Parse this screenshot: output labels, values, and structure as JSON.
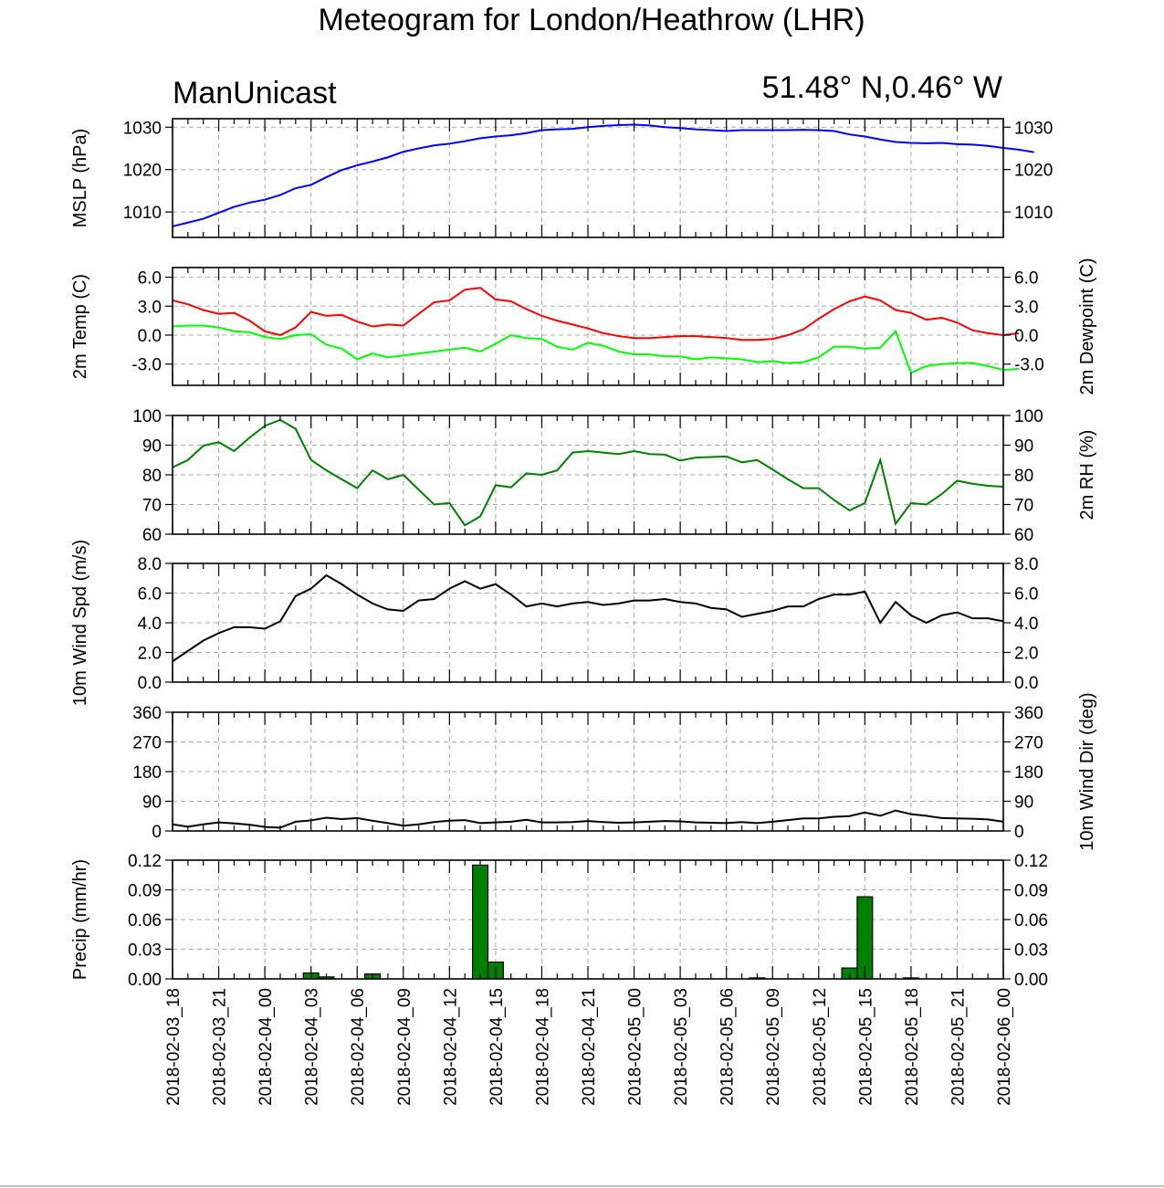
{
  "title": "Meteogram for London/Heathrow (LHR)",
  "model": "ManUnicast",
  "location": "51.48° N,0.46° W",
  "time_labels": [
    "2018-02-03_18",
    "2018-02-03_21",
    "2018-02-04_00",
    "2018-02-04_03",
    "2018-02-04_06",
    "2018-02-04_09",
    "2018-02-04_12",
    "2018-02-04_15",
    "2018-02-04_18",
    "2018-02-04_21",
    "2018-02-05_00",
    "2018-02-05_03",
    "2018-02-05_06",
    "2018-02-05_09",
    "2018-02-05_12",
    "2018-02-05_15",
    "2018-02-05_18",
    "2018-02-05_21",
    "2018-02-06_00"
  ],
  "chart_data": [
    {
      "type": "line",
      "ylabel": "MSLP (hPa)",
      "ylabel_right": "",
      "ylim": [
        1004,
        1032
      ],
      "yticks": [
        "1010",
        "1020",
        "1030"
      ],
      "ytick_values": [
        1010,
        1020,
        1030
      ],
      "grid": true,
      "x_unit": "hours since 2018-02-03 18:00",
      "series": [
        {
          "color": "#0000ff",
          "values": [
            1006.6,
            1007.5,
            1008.4,
            1009.8,
            1011.2,
            1012.2,
            1012.9,
            1014.0,
            1015.6,
            1016.4,
            1018.2,
            1019.9,
            1021.0,
            1021.9,
            1022.9,
            1024.2,
            1025.0,
            1025.7,
            1026.1,
            1026.7,
            1027.4,
            1027.8,
            1028.1,
            1028.6,
            1029.3,
            1029.5,
            1029.6,
            1030.0,
            1030.3,
            1030.5,
            1030.6,
            1030.4,
            1030.0,
            1029.8,
            1029.5,
            1029.3,
            1029.1,
            1029.3,
            1029.3,
            1029.3,
            1029.3,
            1029.4,
            1029.3,
            1029.1,
            1028.3,
            1027.8,
            1027.1,
            1026.5,
            1026.3,
            1026.2,
            1026.3,
            1026.0,
            1025.9,
            1025.6,
            1025.1,
            1024.7,
            1024.1
          ]
        }
      ]
    },
    {
      "type": "line",
      "ylabel": "2m Temp (C)",
      "ylabel_right": "2m Dewpoint (C)",
      "ylim": [
        -5.2,
        7.0
      ],
      "yticks": [
        "-3.0",
        "0.0",
        "3.0",
        "6.0"
      ],
      "ytick_values": [
        -3,
        0,
        3,
        6
      ],
      "grid": true,
      "x_unit": "hours since 2018-02-03 18:00",
      "series": [
        {
          "color": "#ff0000",
          "values": [
            3.6,
            3.2,
            2.6,
            2.2,
            2.3,
            1.5,
            0.4,
            0.0,
            0.8,
            2.4,
            2.0,
            2.1,
            1.4,
            0.9,
            1.1,
            1.0,
            2.2,
            3.4,
            3.6,
            4.7,
            4.9,
            3.7,
            3.5,
            2.7,
            2.0,
            1.5,
            1.1,
            0.7,
            0.2,
            -0.1,
            -0.3,
            -0.3,
            -0.2,
            -0.1,
            -0.1,
            -0.2,
            -0.3,
            -0.5,
            -0.5,
            -0.4,
            0.0,
            0.6,
            1.7,
            2.7,
            3.5,
            4.0,
            3.6,
            2.6,
            2.3,
            1.6,
            1.8,
            1.3,
            0.5,
            0.2,
            0.0,
            0.2
          ]
        },
        {
          "color": "#00ff00",
          "values": [
            0.9,
            1.0,
            1.0,
            0.8,
            0.4,
            0.3,
            -0.2,
            -0.4,
            0.0,
            0.1,
            -1.0,
            -1.4,
            -2.5,
            -1.9,
            -2.3,
            -2.1,
            -1.9,
            -1.7,
            -1.5,
            -1.3,
            -1.7,
            -0.9,
            0.0,
            -0.3,
            -0.4,
            -1.2,
            -1.5,
            -0.8,
            -1.1,
            -1.7,
            -2.0,
            -2.0,
            -2.2,
            -2.2,
            -2.5,
            -2.3,
            -2.4,
            -2.5,
            -2.8,
            -2.7,
            -2.9,
            -2.8,
            -2.3,
            -1.2,
            -1.2,
            -1.4,
            -1.3,
            0.4,
            -3.9,
            -3.2,
            -3.0,
            -2.9,
            -2.9,
            -3.2,
            -3.6,
            -3.5
          ]
        }
      ]
    },
    {
      "type": "line",
      "ylabel": "",
      "ylabel_right": "2m RH (%)",
      "ylim": [
        60,
        100
      ],
      "yticks": [
        "60",
        "70",
        "80",
        "90",
        "100"
      ],
      "ytick_values": [
        60,
        70,
        80,
        90,
        100
      ],
      "grid": true,
      "x_unit": "hours since 2018-02-03 18:00",
      "series": [
        {
          "color": "#008000",
          "values": [
            82.5,
            85.0,
            89.8,
            91.0,
            88.0,
            92.5,
            96.5,
            98.5,
            95.5,
            85.0,
            81.5,
            78.5,
            75.5,
            81.5,
            78.5,
            80.0,
            75.0,
            70.0,
            70.5,
            63.0,
            66.0,
            76.5,
            75.8,
            80.5,
            80.0,
            81.5,
            87.5,
            88.0,
            87.5,
            87.0,
            88.0,
            87.0,
            86.8,
            84.8,
            85.8,
            86.0,
            86.2,
            84.2,
            85.0,
            81.8,
            78.5,
            75.5,
            75.5,
            71.5,
            68.0,
            70.5,
            85.0,
            63.5,
            70.5,
            70.0,
            73.5,
            78.0,
            77.0,
            76.3,
            76.0
          ]
        }
      ]
    },
    {
      "type": "line",
      "ylabel": "10m Wind Spd (m/s)",
      "ylabel_right": "",
      "ylim": [
        0,
        8
      ],
      "yticks": [
        "0.0",
        "2.0",
        "4.0",
        "6.0",
        "8.0"
      ],
      "ytick_values": [
        0,
        2,
        4,
        6,
        8
      ],
      "grid": true,
      "x_unit": "hours since 2018-02-03 18:00",
      "series": [
        {
          "color": "#000000",
          "values": [
            1.4,
            2.1,
            2.8,
            3.3,
            3.7,
            3.7,
            3.6,
            4.1,
            5.8,
            6.3,
            7.2,
            6.6,
            5.9,
            5.3,
            4.9,
            4.8,
            5.5,
            5.6,
            6.3,
            6.8,
            6.3,
            6.6,
            5.9,
            5.1,
            5.3,
            5.1,
            5.3,
            5.4,
            5.2,
            5.3,
            5.5,
            5.5,
            5.6,
            5.4,
            5.3,
            5.0,
            4.9,
            4.4,
            4.6,
            4.8,
            5.1,
            5.1,
            5.6,
            5.9,
            5.9,
            6.1,
            4.0,
            5.4,
            4.5,
            4.0,
            4.5,
            4.7,
            4.3,
            4.3,
            4.1
          ]
        }
      ]
    },
    {
      "type": "line",
      "ylabel": "",
      "ylabel_right": "10m Wind Dir (deg)",
      "ylim": [
        0,
        360
      ],
      "yticks": [
        "0",
        "90",
        "180",
        "270",
        "360"
      ],
      "ytick_values": [
        0,
        90,
        180,
        270,
        360
      ],
      "grid": true,
      "x_unit": "hours since 2018-02-03 18:00",
      "series": [
        {
          "color": "#000000",
          "values": [
            20,
            13,
            20,
            26,
            23,
            19,
            12,
            10,
            28,
            32,
            40,
            36,
            39,
            31,
            24,
            16,
            20,
            27,
            31,
            33,
            24,
            26,
            28,
            34,
            26,
            26,
            27,
            30,
            27,
            25,
            26,
            28,
            30,
            29,
            26,
            25,
            24,
            27,
            24,
            28,
            33,
            38,
            38,
            43,
            45,
            56,
            46,
            62,
            51,
            46,
            39,
            38,
            37,
            35,
            28
          ]
        }
      ]
    },
    {
      "type": "bar",
      "ylabel": "Precip (mm/hr)",
      "ylabel_right": "",
      "ylim": [
        0,
        0.12
      ],
      "yticks": [
        "0.00",
        "0.03",
        "0.06",
        "0.09",
        "0.12"
      ],
      "ytick_values": [
        0,
        0.03,
        0.06,
        0.09,
        0.12
      ],
      "grid": true,
      "x_unit": "hours since 2018-02-03 18:00",
      "bars": [
        {
          "x": 9,
          "value": 0.006
        },
        {
          "x": 10,
          "value": 0.002
        },
        {
          "x": 13,
          "value": 0.005
        },
        {
          "x": 20,
          "value": 0.115
        },
        {
          "x": 21,
          "value": 0.017
        },
        {
          "x": 38,
          "value": 0.001
        },
        {
          "x": 44,
          "value": 0.011
        },
        {
          "x": 45,
          "value": 0.083
        },
        {
          "x": 48,
          "value": 0.001
        }
      ],
      "bar_color": "#008000"
    }
  ]
}
